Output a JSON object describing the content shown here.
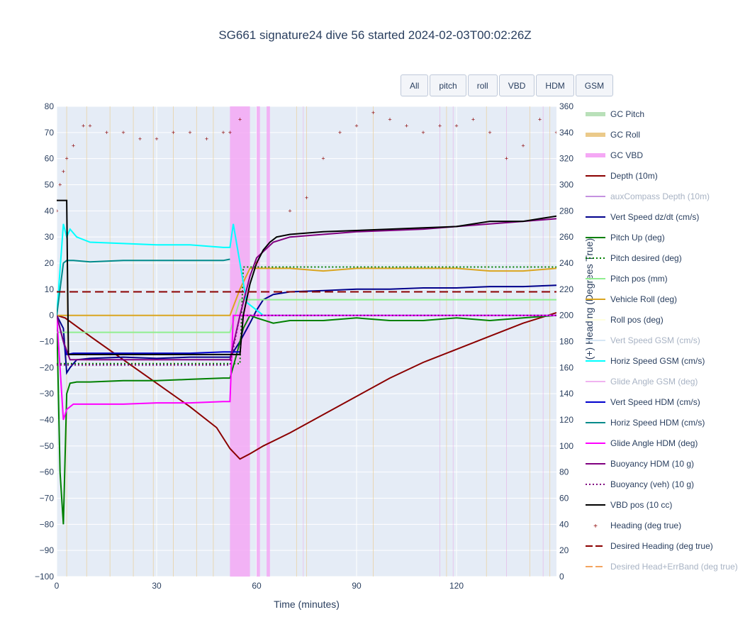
{
  "title": "SG661 signature24 dive 56 started 2024-02-03T00:02:26Z",
  "buttons": [
    "All",
    "pitch",
    "roll",
    "VBD",
    "HDM",
    "GSM"
  ],
  "colors": {
    "plot_bg": "#e5ecf6",
    "grid": "#ffffff",
    "text": "#2a3f5f"
  },
  "chart_data": {
    "type": "line",
    "xlabel": "Time (minutes)",
    "ylabel": "",
    "y2label": "(+) Heading (Degrees True)",
    "xlim": [
      0,
      150
    ],
    "ylim": [
      -100,
      80
    ],
    "y2lim": [
      0,
      360
    ],
    "xticks": [
      0,
      30,
      60,
      90,
      120
    ],
    "yticks": [
      -100,
      -90,
      -80,
      -70,
      -60,
      -50,
      -40,
      -30,
      -20,
      -10,
      0,
      10,
      20,
      30,
      40,
      50,
      60,
      70,
      80
    ],
    "y2ticks": [
      0,
      20,
      40,
      60,
      80,
      100,
      120,
      140,
      160,
      180,
      200,
      220,
      240,
      260,
      280,
      300,
      320,
      340,
      360
    ],
    "grid": true,
    "legend_position": "right",
    "vbd_bands": [
      [
        52,
        58
      ],
      [
        60,
        61
      ],
      [
        63,
        64
      ]
    ],
    "series": [
      {
        "name": "GC Pitch",
        "color": "#b9e0b9",
        "style": "band",
        "visible": true
      },
      {
        "name": "GC Roll",
        "color": "#ebca8a",
        "style": "band",
        "visible": true
      },
      {
        "name": "GC VBD",
        "color": "#f5a8f5",
        "style": "band",
        "visible": true
      },
      {
        "name": "Depth (10m)",
        "color": "#8b0000",
        "style": "line",
        "visible": true,
        "x": [
          0,
          2.5,
          10,
          20,
          30,
          40,
          48,
          52,
          55,
          58,
          62,
          70,
          80,
          90,
          100,
          110,
          120,
          130,
          140,
          150
        ],
        "y": [
          0,
          -1,
          -8,
          -17,
          -26,
          -35,
          -43,
          -51,
          -55,
          -53,
          -50,
          -45,
          -38,
          -31,
          -24,
          -18,
          -13,
          -8,
          -3,
          1
        ]
      },
      {
        "name": "auxCompass Depth (10m)",
        "color": "#c592e0",
        "style": "line",
        "visible": false
      },
      {
        "name": "Vert Speed dz/dt (cm/s)",
        "color": "#00008b",
        "style": "line",
        "visible": true,
        "x": [
          0,
          2,
          3,
          4,
          6,
          10,
          20,
          30,
          40,
          50,
          52,
          55,
          58,
          60,
          62,
          65,
          70,
          80,
          90,
          100,
          110,
          120,
          130,
          140,
          150
        ],
        "y": [
          0,
          -5,
          -22,
          -20,
          -17,
          -16.5,
          -16,
          -16.5,
          -16,
          -16,
          -16,
          -10,
          -3,
          2,
          6,
          8,
          9,
          9.5,
          10,
          10,
          10.5,
          10.5,
          11,
          11,
          11.5
        ]
      },
      {
        "name": "Pitch Up (deg)",
        "color": "#008000",
        "style": "line",
        "visible": true,
        "x": [
          0,
          1,
          2,
          3,
          4,
          6,
          10,
          20,
          30,
          40,
          50,
          52,
          54,
          56,
          58,
          60,
          65,
          70,
          80,
          90,
          100,
          110,
          120,
          130,
          140,
          150
        ],
        "y": [
          0,
          -60,
          -80,
          -30,
          -26,
          -25.5,
          -25.5,
          -25,
          -25,
          -24.5,
          -24,
          -24,
          -15,
          -5,
          0,
          -1,
          -3,
          -2,
          -2,
          -1,
          -2,
          -2,
          -1,
          -2,
          -1,
          0
        ]
      },
      {
        "name": "Pitch desired (deg)",
        "color": "#008000",
        "style": "dot",
        "visible": true,
        "x": [
          0,
          55,
          56,
          150
        ],
        "y": [
          -18.5,
          -18.5,
          18.5,
          18.5
        ]
      },
      {
        "name": "Pitch pos (mm)",
        "color": "#90ee90",
        "style": "line",
        "visible": true,
        "x": [
          0,
          52,
          55,
          150
        ],
        "y": [
          -6.5,
          -6.5,
          6,
          6
        ]
      },
      {
        "name": "Vehicle Roll (deg)",
        "color": "#daa520",
        "style": "line",
        "visible": true,
        "x": [
          0,
          20,
          40,
          52,
          55,
          58,
          70,
          80,
          90,
          100,
          110,
          120,
          130,
          140,
          150
        ],
        "y": [
          0,
          0,
          0,
          0,
          10,
          18,
          18,
          17,
          18,
          18,
          18,
          18,
          17,
          17,
          18
        ]
      },
      {
        "name": "Roll pos (deg)",
        "color": "#ffffe0",
        "style": "line",
        "visible": true
      },
      {
        "name": "Vert Speed GSM (cm/s)",
        "color": "#d6e6f5",
        "style": "line",
        "visible": false
      },
      {
        "name": "Horiz Speed GSM (cm/s)",
        "color": "#00ffff",
        "style": "line",
        "visible": true,
        "x": [
          0,
          2,
          3,
          4,
          6,
          10,
          20,
          30,
          40,
          50,
          52,
          53,
          55,
          57,
          60,
          62,
          64,
          66,
          150
        ],
        "y": [
          0,
          35,
          30,
          33,
          30,
          28,
          27.5,
          27,
          27,
          26,
          26,
          35,
          20,
          5,
          2,
          0,
          0,
          0,
          0
        ]
      },
      {
        "name": "Glide Angle GSM (deg)",
        "color": "#f0b3f0",
        "style": "line",
        "visible": false
      },
      {
        "name": "Vert Speed HDM (cm/s)",
        "color": "#0000cd",
        "style": "line",
        "visible": true,
        "x": [
          0,
          2,
          3,
          5,
          10,
          20,
          30,
          40,
          50,
          52,
          55
        ],
        "y": [
          0,
          -10,
          -15,
          -14.5,
          -14.5,
          -14.5,
          -14.5,
          -14.5,
          -14,
          -14,
          -14
        ]
      },
      {
        "name": "Horiz Speed HDM (cm/s)",
        "color": "#008b8b",
        "style": "line",
        "visible": true,
        "x": [
          0,
          2,
          3,
          5,
          10,
          20,
          30,
          40,
          50,
          52
        ],
        "y": [
          0,
          20,
          21,
          21,
          20.5,
          21,
          21,
          21,
          21,
          21.5
        ]
      },
      {
        "name": "Glide Angle HDM (deg)",
        "color": "#ff00ff",
        "style": "line",
        "visible": true,
        "x": [
          0,
          2,
          3,
          5,
          10,
          20,
          30,
          40,
          50,
          52,
          53,
          150
        ],
        "y": [
          0,
          -40,
          -36,
          -34,
          -34,
          -34,
          -33.5,
          -33.5,
          -33,
          -33,
          0,
          0
        ]
      },
      {
        "name": "Buoyancy HDM (10 g)",
        "color": "#800080",
        "style": "line",
        "visible": true,
        "x": [
          0,
          2,
          4,
          10,
          20,
          30,
          40,
          50,
          52,
          55,
          58,
          60,
          65,
          70,
          80,
          90,
          100,
          110,
          120,
          130,
          140,
          150
        ],
        "y": [
          0,
          -10,
          -17,
          -17,
          -17,
          -17,
          -17,
          -17,
          -17,
          0,
          15,
          22,
          28,
          30,
          31,
          32,
          32.5,
          33,
          34,
          35,
          36,
          37
        ]
      },
      {
        "name": "Buoyancy (veh) (10 g)",
        "color": "#800080",
        "style": "dot",
        "visible": true,
        "x": [
          0,
          52,
          55,
          150
        ],
        "y": [
          -19,
          -19,
          0,
          0
        ]
      },
      {
        "name": "VBD pos (10 cc)",
        "color": "#000000",
        "style": "line",
        "visible": true,
        "x": [
          0,
          3,
          3.5,
          10,
          20,
          30,
          40,
          50,
          55,
          56,
          58,
          60,
          62,
          64,
          66,
          70,
          80,
          90,
          100,
          110,
          120,
          130,
          140,
          150
        ],
        "y": [
          44,
          44,
          -15,
          -15,
          -15,
          -15,
          -15,
          -15,
          -15,
          0,
          12,
          20,
          25,
          28,
          30,
          31,
          32,
          32.5,
          33,
          33.5,
          34,
          36,
          36,
          38
        ]
      },
      {
        "name": "Heading (deg true)",
        "color": "#8b0000",
        "style": "markers",
        "visible": true,
        "axis": "y2",
        "x": [
          0,
          1,
          2,
          3,
          5,
          8,
          10,
          15,
          20,
          25,
          30,
          35,
          40,
          45,
          50,
          52,
          55,
          60,
          70,
          75,
          80,
          85,
          90,
          95,
          100,
          105,
          110,
          115,
          120,
          125,
          130,
          135,
          140,
          145,
          150
        ],
        "y": [
          280,
          300,
          310,
          320,
          330,
          345,
          345,
          340,
          340,
          335,
          335,
          340,
          340,
          335,
          340,
          340,
          350,
          240,
          280,
          290,
          320,
          340,
          345,
          355,
          350,
          345,
          340,
          345,
          345,
          350,
          340,
          320,
          330,
          350,
          340
        ]
      },
      {
        "name": "Desired Heading (deg true)",
        "color": "#8b0000",
        "style": "dash",
        "visible": true,
        "axis": "y2",
        "x": [
          0,
          150
        ],
        "y": [
          218,
          218
        ]
      },
      {
        "name": "Desired Head+ErrBand (deg true)",
        "color": "#f4a460",
        "style": "dash",
        "visible": false,
        "axis": "y2"
      }
    ]
  }
}
